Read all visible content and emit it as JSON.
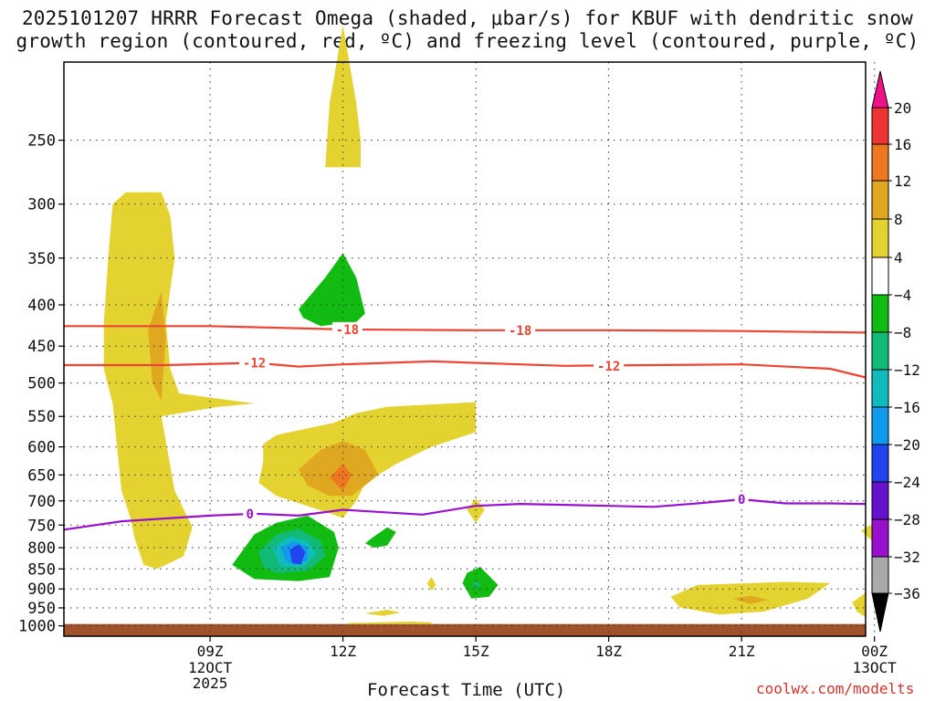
{
  "title_line1": "2025101207 HRRR Forecast Omega (shaded, μbar/s) for KBUF with dendritic snow",
  "title_line2": "growth region (contoured, red, ºC) and freezing level (contoured, purple, ºC)",
  "xlabel": "Forecast Time (UTC)",
  "credit": "coolwx.com/modelts",
  "colors": {
    "grid": "#333333",
    "dendritic": "#ee4433",
    "freezing": "#9911cc",
    "ground": "#a0522d"
  },
  "chart_data": {
    "type": "contour",
    "x_range_hours_after_09Z": [
      -3.3,
      14.8
    ],
    "y_range_hPa": [
      200,
      1030
    ],
    "pressure_ticks": [
      250,
      300,
      350,
      400,
      450,
      500,
      550,
      600,
      650,
      700,
      750,
      800,
      850,
      900,
      950,
      1000
    ],
    "time_ticks": [
      {
        "hour": 0,
        "label": "09Z",
        "sub": [
          "12OCT",
          "2025"
        ]
      },
      {
        "hour": 3,
        "label": "12Z",
        "sub": []
      },
      {
        "hour": 6,
        "label": "15Z",
        "sub": []
      },
      {
        "hour": 9,
        "label": "18Z",
        "sub": []
      },
      {
        "hour": 12,
        "label": "21Z",
        "sub": []
      },
      {
        "hour": 15,
        "label": "00Z",
        "sub": [
          "13OCT"
        ]
      }
    ],
    "colorbar": {
      "levels": [
        "20",
        "16",
        "12",
        "8",
        "4",
        "−4",
        "−8",
        "−12",
        "−16",
        "−20",
        "−24",
        "−28",
        "−32",
        "−36"
      ],
      "bins": [
        "#ee1188",
        "#ee3333",
        "#ee7722",
        "#e0a820",
        "#e3d22f",
        "#ffffff",
        "#11bb11",
        "#11bb77",
        "#11bbbb",
        "#1199ee",
        "#2244ee",
        "#6611cc",
        "#9911cc",
        "#aaaaaa",
        "#000000"
      ]
    },
    "dendritic_lines": [
      {
        "label": "-18",
        "points": [
          [
            -3.3,
            425
          ],
          [
            0,
            425
          ],
          [
            3,
            429
          ],
          [
            6,
            430
          ],
          [
            9,
            430
          ],
          [
            12,
            431
          ],
          [
            14.8,
            433
          ]
        ]
      },
      {
        "label": "-12",
        "points": [
          [
            -3.3,
            475
          ],
          [
            -1,
            475
          ],
          [
            1,
            472
          ],
          [
            2,
            477
          ],
          [
            3,
            474
          ],
          [
            5,
            470
          ],
          [
            8,
            476
          ],
          [
            12,
            474
          ],
          [
            14,
            480
          ],
          [
            14.8,
            492
          ]
        ]
      }
    ],
    "freezing_line": {
      "label": "0",
      "points": [
        [
          -3.3,
          760
        ],
        [
          -2,
          742
        ],
        [
          0,
          730
        ],
        [
          1,
          726
        ],
        [
          2,
          730
        ],
        [
          3,
          718
        ],
        [
          4.8,
          728
        ],
        [
          6,
          710
        ],
        [
          7,
          706
        ],
        [
          8,
          708
        ],
        [
          9,
          710
        ],
        [
          10,
          712
        ],
        [
          11,
          705
        ],
        [
          12,
          697
        ],
        [
          13,
          705
        ],
        [
          14,
          705
        ],
        [
          14.8,
          706
        ]
      ]
    },
    "series_labels": [
      {
        "text": "-18",
        "x": 3.1,
        "p": 429,
        "color_key": "dendritic"
      },
      {
        "text": "-18",
        "x": 7.0,
        "p": 430,
        "color_key": "dendritic"
      },
      {
        "text": "-12",
        "x": 1.0,
        "p": 472,
        "color_key": "dendritic"
      },
      {
        "text": "-12",
        "x": 9.0,
        "p": 476,
        "color_key": "dendritic"
      },
      {
        "text": "0",
        "x": 0.9,
        "p": 726,
        "color_key": "freezing"
      },
      {
        "text": "0",
        "x": 12.0,
        "p": 697,
        "color_key": "freezing"
      }
    ],
    "omega_regions": [
      {
        "name": "upper-plume",
        "bin": 4,
        "points": [
          [
            2.6,
            270
          ],
          [
            2.7,
            225
          ],
          [
            3.0,
            180
          ],
          [
            3.3,
            225
          ],
          [
            3.4,
            250
          ],
          [
            3.4,
            270
          ]
        ]
      },
      {
        "name": "west-column",
        "bin": 4,
        "points": [
          [
            -2.2,
            300
          ],
          [
            -1.9,
            290
          ],
          [
            -1.1,
            290
          ],
          [
            -0.9,
            310
          ],
          [
            -0.8,
            350
          ],
          [
            -1.0,
            420
          ],
          [
            -0.9,
            480
          ],
          [
            -0.7,
            515
          ],
          [
            1.0,
            530
          ],
          [
            0.2,
            535
          ],
          [
            -0.7,
            545
          ],
          [
            -1.1,
            550
          ],
          [
            -1.0,
            590
          ],
          [
            -0.8,
            680
          ],
          [
            -0.4,
            755
          ],
          [
            -0.6,
            820
          ],
          [
            -1.2,
            850
          ],
          [
            -1.5,
            840
          ],
          [
            -1.7,
            780
          ],
          [
            -1.8,
            735
          ],
          [
            -2.0,
            680
          ],
          [
            -2.1,
            600
          ],
          [
            -2.2,
            530
          ],
          [
            -2.4,
            480
          ],
          [
            -2.4,
            420
          ],
          [
            -2.3,
            350
          ]
        ]
      },
      {
        "name": "west-column-core",
        "bin": 3,
        "points": [
          [
            -1.1,
            385
          ],
          [
            -1.0,
            440
          ],
          [
            -1.1,
            525
          ],
          [
            -1.3,
            500
          ],
          [
            -1.4,
            430
          ]
        ]
      },
      {
        "name": "mid-blob",
        "bin": 4,
        "points": [
          [
            1.2,
            595
          ],
          [
            1.5,
            580
          ],
          [
            2.8,
            560
          ],
          [
            3.3,
            545
          ],
          [
            4.0,
            535
          ],
          [
            6.0,
            528
          ],
          [
            6.0,
            575
          ],
          [
            5.0,
            600
          ],
          [
            4.2,
            630
          ],
          [
            3.5,
            665
          ],
          [
            3.3,
            700
          ],
          [
            3.0,
            735
          ],
          [
            2.7,
            725
          ],
          [
            1.5,
            690
          ],
          [
            1.1,
            665
          ],
          [
            1.2,
            625
          ]
        ]
      },
      {
        "name": "mid-blob-8",
        "bin": 3,
        "points": [
          [
            2.0,
            640
          ],
          [
            2.5,
            605
          ],
          [
            3.0,
            590
          ],
          [
            3.5,
            605
          ],
          [
            3.8,
            650
          ],
          [
            3.2,
            690
          ],
          [
            2.7,
            690
          ],
          [
            2.2,
            670
          ]
        ]
      },
      {
        "name": "mid-blob-12",
        "bin": 2,
        "points": [
          [
            2.7,
            655
          ],
          [
            3.0,
            630
          ],
          [
            3.2,
            650
          ],
          [
            3.0,
            680
          ]
        ]
      },
      {
        "name": "green-upper",
        "bin": 6,
        "points": [
          [
            2.0,
            405
          ],
          [
            2.6,
            370
          ],
          [
            3.0,
            345
          ],
          [
            3.3,
            370
          ],
          [
            3.5,
            410
          ],
          [
            3.3,
            420
          ],
          [
            2.5,
            425
          ],
          [
            2.1,
            415
          ]
        ]
      },
      {
        "name": "dipole-green",
        "bin": 6,
        "points": [
          [
            0.5,
            840
          ],
          [
            1.0,
            770
          ],
          [
            1.5,
            745
          ],
          [
            2.2,
            730
          ],
          [
            2.8,
            765
          ],
          [
            2.9,
            800
          ],
          [
            2.7,
            870
          ],
          [
            2.0,
            880
          ],
          [
            1.0,
            875
          ]
        ]
      },
      {
        "name": "dipole-teal",
        "bin": 7,
        "points": [
          [
            1.1,
            810
          ],
          [
            1.5,
            770
          ],
          [
            2.0,
            758
          ],
          [
            2.5,
            785
          ],
          [
            2.6,
            820
          ],
          [
            2.2,
            855
          ],
          [
            1.5,
            860
          ],
          [
            1.2,
            845
          ]
        ]
      },
      {
        "name": "dipole-cyan",
        "bin": 8,
        "points": [
          [
            1.4,
            800
          ],
          [
            1.8,
            775
          ],
          [
            2.2,
            785
          ],
          [
            2.4,
            815
          ],
          [
            2.1,
            845
          ],
          [
            1.6,
            845
          ]
        ]
      },
      {
        "name": "dipole-lightblue",
        "bin": 9,
        "points": [
          [
            1.6,
            800
          ],
          [
            1.9,
            785
          ],
          [
            2.2,
            800
          ],
          [
            2.2,
            830
          ],
          [
            1.9,
            840
          ],
          [
            1.7,
            830
          ]
        ]
      },
      {
        "name": "dipole-blue",
        "bin": 10,
        "points": [
          [
            1.8,
            805
          ],
          [
            2.0,
            792
          ],
          [
            2.15,
            810
          ],
          [
            2.05,
            840
          ],
          [
            1.85,
            835
          ]
        ]
      },
      {
        "name": "small-green",
        "bin": 6,
        "points": [
          [
            3.5,
            790
          ],
          [
            3.7,
            775
          ],
          [
            4.0,
            755
          ],
          [
            4.2,
            765
          ],
          [
            4.0,
            795
          ],
          [
            3.7,
            800
          ]
        ]
      },
      {
        "name": "green-15Z",
        "bin": 6,
        "points": [
          [
            5.7,
            885
          ],
          [
            5.8,
            860
          ],
          [
            6.1,
            845
          ],
          [
            6.5,
            890
          ],
          [
            6.3,
            920
          ],
          [
            5.9,
            925
          ]
        ]
      },
      {
        "name": "tealdot-15Z",
        "bin": 7,
        "points": [
          [
            5.95,
            885
          ],
          [
            6.05,
            880
          ],
          [
            6.1,
            895
          ],
          [
            5.95,
            895
          ]
        ]
      },
      {
        "name": "small-yellow-15Z",
        "bin": 4,
        "points": [
          [
            5.8,
            718
          ],
          [
            6.0,
            695
          ],
          [
            6.2,
            718
          ],
          [
            6.0,
            745
          ]
        ]
      },
      {
        "name": "tiny-yellow-14Z",
        "bin": 4,
        "points": [
          [
            4.9,
            885
          ],
          [
            5.0,
            870
          ],
          [
            5.1,
            890
          ],
          [
            5.0,
            905
          ]
        ]
      },
      {
        "name": "low-yellow-left",
        "bin": 4,
        "points": [
          [
            3.5,
            965
          ],
          [
            4.0,
            955
          ],
          [
            4.3,
            963
          ],
          [
            3.9,
            972
          ]
        ]
      },
      {
        "name": "ground-yellow",
        "bin": 4,
        "points": [
          [
            3.1,
            992
          ],
          [
            4.5,
            988
          ],
          [
            5.0,
            990
          ],
          [
            5.0,
            995
          ],
          [
            3.1,
            995
          ]
        ]
      },
      {
        "name": "east-yellow",
        "bin": 4,
        "points": [
          [
            10.4,
            920
          ],
          [
            11.0,
            890
          ],
          [
            13.0,
            882
          ],
          [
            14.0,
            885
          ],
          [
            13.5,
            925
          ],
          [
            12.5,
            960
          ],
          [
            11.5,
            968
          ],
          [
            10.6,
            948
          ]
        ]
      },
      {
        "name": "east-orange",
        "bin": 3,
        "points": [
          [
            11.8,
            925
          ],
          [
            12.2,
            918
          ],
          [
            12.6,
            928
          ],
          [
            12.2,
            940
          ]
        ]
      },
      {
        "name": "east-small",
        "bin": 4,
        "points": [
          [
            14.7,
            762
          ],
          [
            15.0,
            745
          ],
          [
            15.3,
            760
          ],
          [
            15.0,
            790
          ]
        ]
      },
      {
        "name": "east-edge",
        "bin": 4,
        "points": [
          [
            14.5,
            935
          ],
          [
            14.8,
            910
          ],
          [
            14.8,
            975
          ],
          [
            14.6,
            960
          ]
        ]
      }
    ]
  }
}
